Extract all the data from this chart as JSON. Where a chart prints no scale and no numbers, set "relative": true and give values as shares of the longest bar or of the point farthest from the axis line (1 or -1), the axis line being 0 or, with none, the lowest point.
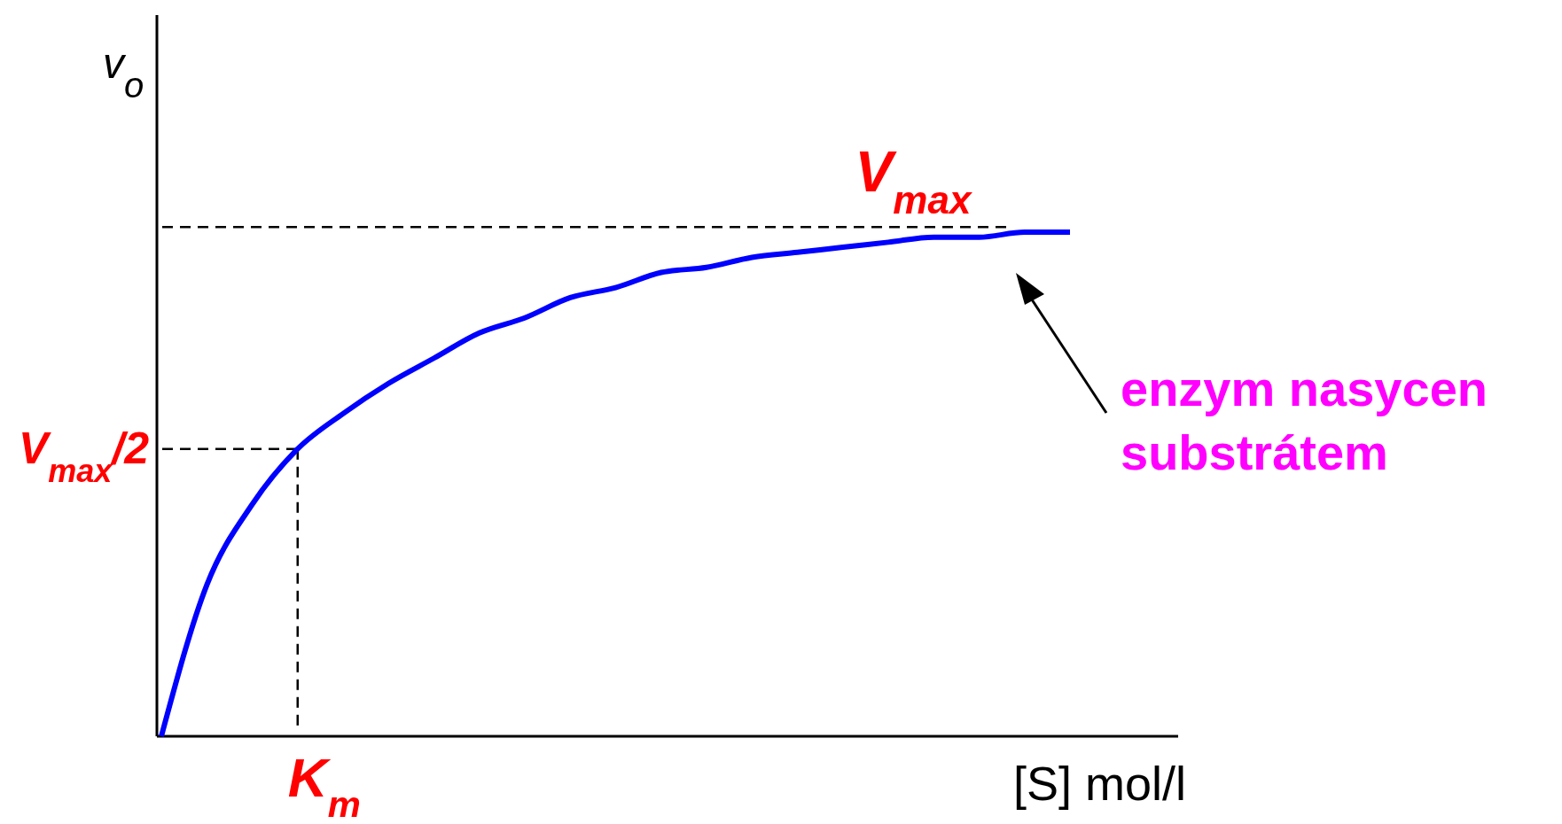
{
  "chart_data": {
    "type": "line",
    "relative": true,
    "xlabel": "[S] mol/l",
    "ylabel": "v$_{o}$",
    "categories": [
      null,
      null,
      null,
      null,
      null,
      null,
      null,
      null,
      null,
      null,
      null,
      null,
      null,
      null,
      null,
      null,
      null,
      null,
      null,
      null,
      null
    ],
    "series": [
      {
        "color": "#0000ff",
        "values": [
          0,
          0.3,
          0.46,
          0.57,
          0.64,
          0.7,
          0.75,
          0.8,
          0.83,
          0.87,
          0.89,
          0.92,
          0.93,
          0.95,
          0.96,
          0.97,
          0.98,
          0.99,
          0.99,
          1.0,
          1.0
        ]
      }
    ],
    "ref_lines": [
      {
        "axis": "y",
        "value": 1.01,
        "label": "V$_{max}$",
        "line_style": "dashed"
      },
      {
        "axis": "y",
        "value": 0.57,
        "label": "V$_{max}$/2",
        "line_style": "dashed"
      }
    ],
    "annotations": [
      "enzym nasycen substrátem",
      "K$_{m}$"
    ],
    "legend": false,
    "grid": false,
    "marker": "none",
    "line_style": "solid"
  }
}
